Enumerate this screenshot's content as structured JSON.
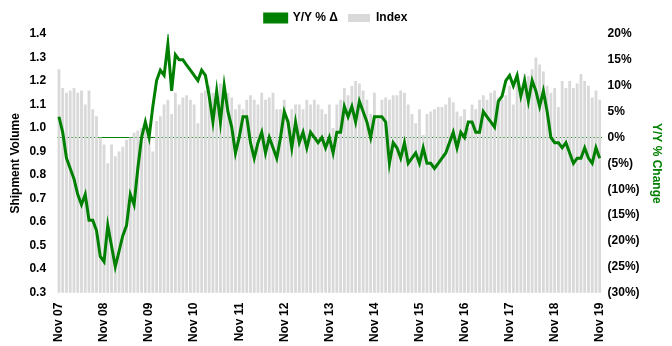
{
  "chart_data": {
    "type": "bar",
    "categories": [
      "Nov 07",
      null,
      null,
      null,
      null,
      null,
      null,
      null,
      null,
      null,
      null,
      null,
      "Nov 08",
      null,
      null,
      null,
      null,
      null,
      null,
      null,
      null,
      null,
      null,
      null,
      "Nov 09",
      null,
      null,
      null,
      null,
      null,
      null,
      null,
      null,
      null,
      null,
      null,
      "Nov 10",
      null,
      null,
      null,
      null,
      null,
      null,
      null,
      null,
      null,
      null,
      null,
      "Nov 11",
      null,
      null,
      null,
      null,
      null,
      null,
      null,
      null,
      null,
      null,
      null,
      "Nov 12",
      null,
      null,
      null,
      null,
      null,
      null,
      null,
      null,
      null,
      null,
      null,
      "Nov 13",
      null,
      null,
      null,
      null,
      null,
      null,
      null,
      null,
      null,
      null,
      null,
      "Nov 14",
      null,
      null,
      null,
      null,
      null,
      null,
      null,
      null,
      null,
      null,
      null,
      "Nov 15",
      null,
      null,
      null,
      null,
      null,
      null,
      null,
      null,
      null,
      null,
      null,
      "Nov 16",
      null,
      null,
      null,
      null,
      null,
      null,
      null,
      null,
      null,
      null,
      null,
      "Nov 17",
      null,
      null,
      null,
      null,
      null,
      null,
      null,
      null,
      null,
      null,
      null,
      "Nov 18",
      null,
      null,
      null,
      null,
      null,
      null,
      null,
      null,
      null,
      null,
      null,
      "Nov 19"
    ],
    "series": [
      {
        "name": "Index",
        "type": "bar",
        "color": "#d9d9d9",
        "values": [
          1.25,
          1.17,
          1.15,
          1.16,
          1.17,
          1.15,
          1.16,
          1.1,
          1.16,
          1.08,
          1.05,
          0.96,
          0.93,
          0.85,
          0.93,
          0.88,
          0.9,
          0.92,
          0.95,
          0.96,
          0.98,
          0.99,
          1.0,
          1.0,
          0.96,
          0.9,
          1.03,
          1.05,
          1.1,
          1.12,
          1.06,
          1.15,
          1.1,
          1.13,
          1.14,
          1.12,
          1.1,
          1.02,
          1.15,
          1.16,
          1.18,
          1.15,
          1.14,
          1.19,
          1.18,
          1.15,
          1.13,
          1.08,
          1.1,
          1.08,
          1.12,
          1.14,
          1.12,
          1.1,
          1.15,
          1.12,
          1.13,
          1.15,
          1.08,
          1.08,
          1.12,
          1.04,
          1.08,
          1.1,
          1.1,
          1.08,
          1.12,
          1.1,
          1.12,
          1.1,
          1.08,
          1.06,
          1.1,
          1.0,
          1.1,
          1.12,
          1.17,
          1.14,
          1.18,
          1.2,
          1.19,
          1.16,
          1.12,
          1.06,
          1.15,
          1.04,
          1.12,
          1.13,
          1.12,
          1.14,
          1.14,
          1.16,
          1.15,
          1.1,
          1.06,
          1.02,
          1.08,
          0.97,
          1.06,
          1.07,
          1.08,
          1.09,
          1.09,
          1.1,
          1.13,
          1.11,
          1.07,
          1.05,
          1.08,
          1.0,
          1.1,
          1.08,
          1.12,
          1.14,
          1.12,
          1.15,
          1.16,
          1.13,
          1.12,
          1.14,
          1.18,
          1.1,
          1.23,
          1.17,
          1.23,
          1.22,
          1.25,
          1.3,
          1.27,
          1.24,
          1.18,
          1.15,
          1.17,
          1.09,
          1.2,
          1.17,
          1.2,
          1.17,
          1.19,
          1.23,
          1.2,
          1.18,
          1.13,
          1.16,
          1.12
        ]
      },
      {
        "name": "Y/Y % Δ",
        "type": "line",
        "color": "#008000",
        "axis": "y2",
        "values": [
          4,
          1,
          -4,
          -6,
          -8,
          -11,
          -13,
          -11,
          -16,
          -16,
          -18,
          -23,
          -24,
          -17,
          -21,
          -25,
          -22,
          -19,
          -17,
          -11,
          -13,
          -6,
          0,
          3,
          0,
          6,
          11,
          13,
          12,
          18,
          9,
          16,
          15,
          15,
          14,
          13,
          12,
          11,
          13,
          12,
          8,
          3,
          9,
          3,
          10,
          5,
          2,
          -3,
          0,
          4,
          4,
          -1,
          -4,
          -1,
          1,
          -3,
          0,
          -2,
          -4,
          0,
          5,
          3,
          -2,
          3,
          -1,
          1,
          -2,
          1,
          0,
          -1,
          0,
          -2,
          0,
          -3,
          1,
          1,
          6,
          4,
          6,
          3,
          7,
          5,
          3,
          0,
          4,
          4,
          4,
          3,
          -5,
          -1,
          -2,
          -4,
          -1,
          -5,
          -4,
          -3,
          -5,
          -2,
          -5,
          -5,
          -6,
          -5,
          -4,
          -3,
          -1,
          1,
          -2,
          1,
          0,
          3,
          3,
          1,
          1,
          5,
          4,
          3,
          2,
          7,
          8,
          11,
          12,
          10,
          12,
          8,
          11,
          7,
          11,
          9,
          6,
          9,
          5,
          0,
          -1,
          -1,
          -2,
          -1,
          -3,
          -5,
          -4,
          -4,
          -2,
          -4,
          -5,
          -2,
          -4
        ]
      }
    ],
    "y_label": "Shipment Volume",
    "y2_label": "Y/Y % Change",
    "ylim": [
      0.3,
      1.4
    ],
    "yticks": [
      0.3,
      0.4,
      0.5,
      0.6,
      0.7,
      0.8,
      0.9,
      {
        "value": 1,
        "label": "1.0"
      },
      1.1,
      1.2,
      1.3,
      1.4
    ],
    "y2lim": [
      -30,
      20
    ],
    "y2ticks": [
      {
        "value": -30,
        "label": "(30%)"
      },
      {
        "value": -25,
        "label": "(25%)"
      },
      {
        "value": -20,
        "label": "(20%)"
      },
      {
        "value": -15,
        "label": "(15%)"
      },
      {
        "value": -10,
        "label": "(10%)"
      },
      {
        "value": -5,
        "label": "(5%)"
      },
      {
        "value": 0,
        "label": "0%"
      },
      {
        "value": 5,
        "label": "5%"
      },
      {
        "value": 10,
        "label": "10%"
      },
      {
        "value": 15,
        "label": "15%"
      },
      {
        "value": 20,
        "label": "20%"
      }
    ],
    "legend": "top"
  }
}
